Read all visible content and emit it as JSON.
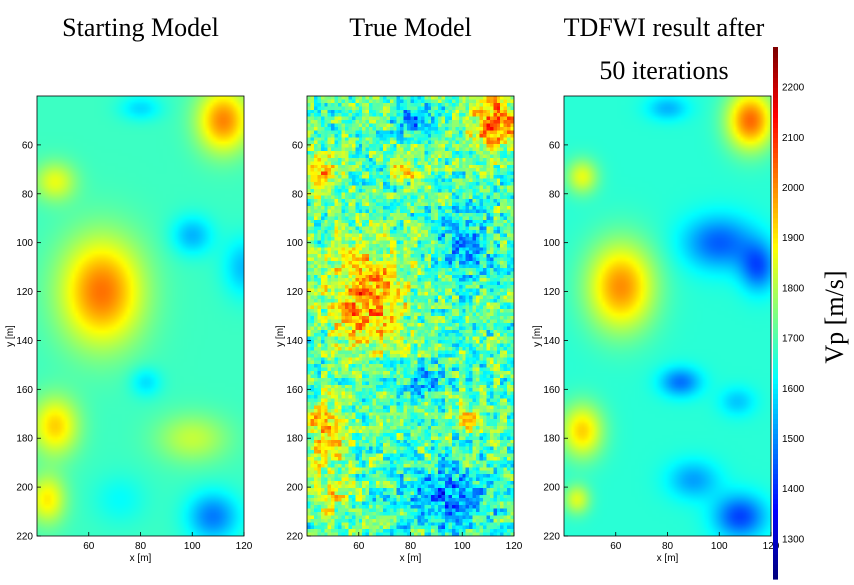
{
  "chart_data": [
    {
      "type": "heatmap",
      "title": "Starting Model",
      "xlabel": "x [m]",
      "ylabel": "y [m]",
      "xlim": [
        40,
        120
      ],
      "ylim": [
        220,
        40
      ],
      "xticks": [
        60,
        80,
        100,
        120
      ],
      "yticks": [
        60,
        80,
        100,
        120,
        140,
        160,
        180,
        200,
        220
      ],
      "field": {
        "background": 1680,
        "features": [
          {
            "x": 65,
            "y": 120,
            "rx": 16,
            "ry": 22,
            "value": 2030
          },
          {
            "x": 112,
            "y": 50,
            "rx": 10,
            "ry": 13,
            "value": 2010
          },
          {
            "x": 47,
            "y": 75,
            "rx": 8,
            "ry": 8,
            "value": 1860
          },
          {
            "x": 47,
            "y": 175,
            "rx": 9,
            "ry": 12,
            "value": 1930
          },
          {
            "x": 44,
            "y": 205,
            "rx": 7,
            "ry": 10,
            "value": 1900
          },
          {
            "x": 100,
            "y": 180,
            "rx": 14,
            "ry": 10,
            "value": 1820
          },
          {
            "x": 100,
            "y": 97,
            "rx": 8,
            "ry": 8,
            "value": 1540
          },
          {
            "x": 108,
            "y": 212,
            "rx": 10,
            "ry": 10,
            "value": 1480
          },
          {
            "x": 80,
            "y": 45,
            "rx": 8,
            "ry": 5,
            "value": 1580
          },
          {
            "x": 82,
            "y": 157,
            "rx": 6,
            "ry": 6,
            "value": 1580
          },
          {
            "x": 120,
            "y": 110,
            "rx": 8,
            "ry": 12,
            "value": 1550
          },
          {
            "x": 72,
            "y": 205,
            "rx": 10,
            "ry": 10,
            "value": 1620
          }
        ]
      }
    },
    {
      "type": "heatmap",
      "title": "True Model",
      "xlabel": "x [m]",
      "ylabel": "y [m]",
      "xlim": [
        40,
        120
      ],
      "ylim": [
        220,
        40
      ],
      "xticks": [
        60,
        80,
        100,
        120
      ],
      "yticks": [
        60,
        80,
        100,
        120,
        140,
        160,
        180,
        200,
        220
      ],
      "field": {
        "background": 1700,
        "noise": 230,
        "features": [
          {
            "x": 63,
            "y": 122,
            "rx": 15,
            "ry": 22,
            "value": 2010
          },
          {
            "x": 112,
            "y": 50,
            "rx": 10,
            "ry": 13,
            "value": 2000
          },
          {
            "x": 47,
            "y": 72,
            "rx": 7,
            "ry": 9,
            "value": 1930
          },
          {
            "x": 78,
            "y": 70,
            "rx": 5,
            "ry": 4,
            "value": 1960
          },
          {
            "x": 47,
            "y": 178,
            "rx": 8,
            "ry": 14,
            "value": 1950
          },
          {
            "x": 100,
            "y": 100,
            "rx": 10,
            "ry": 12,
            "value": 1520
          },
          {
            "x": 82,
            "y": 50,
            "rx": 8,
            "ry": 6,
            "value": 1520
          },
          {
            "x": 95,
            "y": 205,
            "rx": 16,
            "ry": 12,
            "value": 1480
          },
          {
            "x": 85,
            "y": 157,
            "rx": 7,
            "ry": 7,
            "value": 1530
          },
          {
            "x": 50,
            "y": 205,
            "rx": 8,
            "ry": 10,
            "value": 1850
          },
          {
            "x": 102,
            "y": 172,
            "rx": 5,
            "ry": 5,
            "value": 1900
          }
        ]
      }
    },
    {
      "type": "heatmap",
      "title": "TDFWI result after 50 iterations",
      "title_lines": [
        "TDFWI result after",
        "50 iterations"
      ],
      "xlabel": "x [m]",
      "ylabel": "y [m]",
      "xlim": [
        40,
        120
      ],
      "ylim": [
        220,
        40
      ],
      "xticks": [
        60,
        80,
        100,
        120
      ],
      "yticks": [
        60,
        80,
        100,
        120,
        140,
        160,
        180,
        200,
        220
      ],
      "colorbar": {
        "label": "Vp [m/s]",
        "range": [
          1220,
          2280
        ],
        "ticks": [
          1300,
          1400,
          1500,
          1600,
          1700,
          1800,
          1900,
          2000,
          2100,
          2200
        ],
        "colormap": "jet"
      },
      "field": {
        "background": 1660,
        "features": [
          {
            "x": 62,
            "y": 118,
            "rx": 13,
            "ry": 18,
            "value": 2000
          },
          {
            "x": 112,
            "y": 50,
            "rx": 9,
            "ry": 12,
            "value": 2040
          },
          {
            "x": 47,
            "y": 73,
            "rx": 6,
            "ry": 7,
            "value": 1860
          },
          {
            "x": 47,
            "y": 177,
            "rx": 8,
            "ry": 11,
            "value": 1930
          },
          {
            "x": 100,
            "y": 100,
            "rx": 14,
            "ry": 11,
            "value": 1450
          },
          {
            "x": 115,
            "y": 110,
            "rx": 7,
            "ry": 10,
            "value": 1450
          },
          {
            "x": 85,
            "y": 157,
            "rx": 8,
            "ry": 6,
            "value": 1470
          },
          {
            "x": 108,
            "y": 212,
            "rx": 10,
            "ry": 9,
            "value": 1420
          },
          {
            "x": 90,
            "y": 197,
            "rx": 10,
            "ry": 8,
            "value": 1520
          },
          {
            "x": 80,
            "y": 45,
            "rx": 8,
            "ry": 5,
            "value": 1540
          },
          {
            "x": 107,
            "y": 165,
            "rx": 7,
            "ry": 6,
            "value": 1560
          },
          {
            "x": 45,
            "y": 205,
            "rx": 5,
            "ry": 6,
            "value": 1850
          }
        ]
      }
    }
  ]
}
